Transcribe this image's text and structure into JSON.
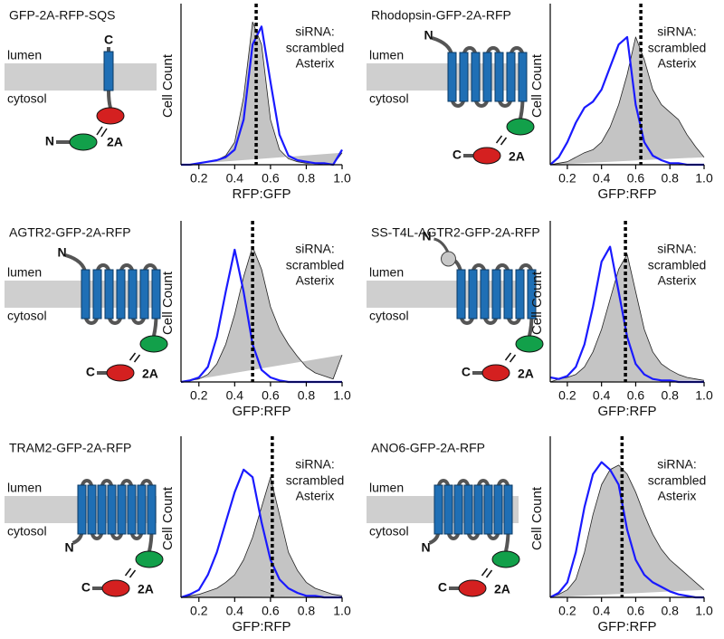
{
  "chart_data": [
    {
      "type": "area",
      "title": "GFP-2A-RFP-SQS",
      "xlabel": "RFP:GFP",
      "ylabel": "Cell Count",
      "membrane_labels": [
        "lumen",
        "cytosol"
      ],
      "termini": [
        "N",
        "C"
      ],
      "cleavage_site": "2A",
      "x": [
        0.1,
        0.15,
        0.2,
        0.25,
        0.3,
        0.35,
        0.4,
        0.45,
        0.5,
        0.55,
        0.6,
        0.65,
        0.7,
        0.75,
        0.8,
        0.85,
        0.9,
        0.95,
        1.0
      ],
      "xlim": [
        0.1,
        1.0
      ],
      "ylim": [
        0,
        1
      ],
      "xticks": [
        0.2,
        0.4,
        0.6,
        0.8,
        {
          "value": 1,
          "label": "1.0"
        }
      ],
      "marker_x": 0.52,
      "legend_title": "siRNA:",
      "series": [
        {
          "name": "scrambled",
          "color": "#c4c4c4",
          "values": [
            0,
            0,
            0.01,
            0.02,
            0.03,
            0.06,
            0.15,
            0.45,
            0.95,
            0.8,
            0.3,
            0.1,
            0.04,
            0.02,
            0.01,
            0.01,
            0,
            0,
            0.08
          ]
        },
        {
          "name": "Asterix",
          "color": "#1a1aff",
          "values": [
            0,
            0,
            0.01,
            0.02,
            0.03,
            0.05,
            0.1,
            0.3,
            0.8,
            0.92,
            0.55,
            0.2,
            0.06,
            0.03,
            0.02,
            0.01,
            0.01,
            0,
            0.1
          ]
        }
      ]
    },
    {
      "type": "area",
      "title": "Rhodopsin-GFP-2A-RFP",
      "xlabel": "GFP:RFP",
      "ylabel": "Cell Count",
      "membrane_labels": [
        "lumen",
        "cytosol"
      ],
      "termini": [
        "N",
        "C"
      ],
      "cleavage_site": "2A",
      "x": [
        0.1,
        0.15,
        0.2,
        0.25,
        0.3,
        0.35,
        0.4,
        0.45,
        0.5,
        0.55,
        0.6,
        0.65,
        0.7,
        0.75,
        0.8,
        0.85,
        0.9,
        0.95,
        1.0
      ],
      "xlim": [
        0.1,
        1.0
      ],
      "ylim": [
        0,
        1
      ],
      "xticks": [
        0.2,
        0.4,
        0.6,
        0.8,
        {
          "value": 1,
          "label": "1.0"
        }
      ],
      "marker_x": 0.63,
      "legend_title": "siRNA:",
      "series": [
        {
          "name": "scrambled",
          "color": "#c4c4c4",
          "values": [
            0,
            0.01,
            0.02,
            0.05,
            0.08,
            0.1,
            0.15,
            0.25,
            0.4,
            0.6,
            0.85,
            0.7,
            0.5,
            0.4,
            0.35,
            0.3,
            0.2,
            0.12,
            0.05
          ]
        },
        {
          "name": "Asterix",
          "color": "#1a1aff",
          "values": [
            0,
            0.05,
            0.15,
            0.28,
            0.38,
            0.42,
            0.5,
            0.65,
            0.8,
            0.85,
            0.4,
            0.15,
            0.06,
            0.03,
            0.01,
            0.01,
            0,
            0,
            0
          ]
        }
      ]
    },
    {
      "type": "area",
      "title": "AGTR2-GFP-2A-RFP",
      "xlabel": "GFP:RFP",
      "ylabel": "Cell Count",
      "membrane_labels": [
        "lumen",
        "cytosol"
      ],
      "termini": [
        "N",
        "C"
      ],
      "cleavage_site": "2A",
      "x": [
        0.1,
        0.15,
        0.2,
        0.25,
        0.3,
        0.35,
        0.4,
        0.45,
        0.5,
        0.55,
        0.6,
        0.65,
        0.7,
        0.75,
        0.8,
        0.85,
        0.9,
        0.95,
        1.0
      ],
      "xlim": [
        0.1,
        1.0
      ],
      "ylim": [
        0,
        1
      ],
      "xticks": [
        0.2,
        0.4,
        0.6,
        0.8,
        {
          "value": 1,
          "label": "1.0"
        }
      ],
      "marker_x": 0.5,
      "legend_title": "siRNA:",
      "series": [
        {
          "name": "scrambled",
          "color": "#c4c4c4",
          "values": [
            0,
            0.01,
            0.02,
            0.05,
            0.12,
            0.25,
            0.45,
            0.7,
            0.9,
            0.75,
            0.5,
            0.35,
            0.25,
            0.17,
            0.1,
            0.06,
            0.04,
            0.02,
            0.18
          ]
        },
        {
          "name": "Asterix",
          "color": "#1a1aff",
          "values": [
            0,
            0.01,
            0.03,
            0.1,
            0.3,
            0.6,
            0.88,
            0.6,
            0.25,
            0.08,
            0.03,
            0.01,
            0,
            0,
            0,
            0,
            0,
            0,
            0
          ]
        }
      ]
    },
    {
      "type": "area",
      "title": "SS-T4L-AGTR2-GFP-2A-RFP",
      "xlabel": "GFP:RFP",
      "ylabel": "Cell Count",
      "membrane_labels": [
        "lumen",
        "cytosol"
      ],
      "termini": [
        "N",
        "C"
      ],
      "cleavage_site": "2A",
      "x": [
        0.1,
        0.15,
        0.2,
        0.25,
        0.3,
        0.35,
        0.4,
        0.45,
        0.5,
        0.55,
        0.6,
        0.65,
        0.7,
        0.75,
        0.8,
        0.85,
        0.9,
        0.95,
        1.0
      ],
      "xlim": [
        0.1,
        1.0
      ],
      "ylim": [
        0,
        1
      ],
      "xticks": [
        0.2,
        0.4,
        0.6,
        0.8,
        {
          "value": 1,
          "label": "1.0"
        }
      ],
      "marker_x": 0.54,
      "legend_title": "siRNA:",
      "series": [
        {
          "name": "scrambled",
          "color": "#c4c4c4",
          "values": [
            0,
            0.02,
            0.03,
            0.05,
            0.1,
            0.2,
            0.35,
            0.55,
            0.75,
            0.85,
            0.6,
            0.35,
            0.2,
            0.12,
            0.08,
            0.05,
            0.03,
            0.02,
            0.01
          ]
        },
        {
          "name": "Asterix",
          "color": "#1a1aff",
          "values": [
            0.03,
            0.02,
            0.04,
            0.1,
            0.25,
            0.5,
            0.8,
            0.9,
            0.6,
            0.3,
            0.12,
            0.05,
            0.02,
            0.01,
            0.01,
            0,
            0,
            0,
            0
          ]
        }
      ]
    },
    {
      "type": "area",
      "title": "TRAM2-GFP-2A-RFP",
      "xlabel": "GFP:RFP",
      "ylabel": "Cell Count",
      "membrane_labels": [
        "lumen",
        "cytosol"
      ],
      "termini": [
        "N",
        "C"
      ],
      "cleavage_site": "2A",
      "x": [
        0.1,
        0.15,
        0.2,
        0.25,
        0.3,
        0.35,
        0.4,
        0.45,
        0.5,
        0.55,
        0.6,
        0.65,
        0.7,
        0.75,
        0.8,
        0.85,
        0.9,
        0.95,
        1.0
      ],
      "xlim": [
        0.1,
        1.0
      ],
      "ylim": [
        0,
        1
      ],
      "xticks": [
        0.2,
        0.4,
        0.6,
        0.8,
        {
          "value": 1,
          "label": "1.0"
        }
      ],
      "marker_x": 0.61,
      "legend_title": "siRNA:",
      "series": [
        {
          "name": "scrambled",
          "color": "#c4c4c4",
          "values": [
            0,
            0.01,
            0.02,
            0.04,
            0.06,
            0.1,
            0.15,
            0.25,
            0.4,
            0.6,
            0.8,
            0.55,
            0.3,
            0.18,
            0.1,
            0.06,
            0.04,
            0.02,
            0.01
          ]
        },
        {
          "name": "Asterix",
          "color": "#1a1aff",
          "values": [
            0,
            0.02,
            0.05,
            0.15,
            0.3,
            0.5,
            0.7,
            0.85,
            0.8,
            0.5,
            0.25,
            0.12,
            0.06,
            0.03,
            0.01,
            0.01,
            0,
            0,
            0
          ]
        }
      ]
    },
    {
      "type": "area",
      "title": "ANO6-GFP-2A-RFP",
      "xlabel": "GFP:RFP",
      "ylabel": "Cell Count",
      "membrane_labels": [
        "lumen",
        "cytosol"
      ],
      "termini": [
        "N",
        "C"
      ],
      "cleavage_site": "2A",
      "x": [
        0.1,
        0.15,
        0.2,
        0.25,
        0.3,
        0.35,
        0.4,
        0.45,
        0.5,
        0.55,
        0.6,
        0.65,
        0.7,
        0.75,
        0.8,
        0.85,
        0.9,
        0.95,
        1.0
      ],
      "xlim": [
        0.1,
        1.0
      ],
      "ylim": [
        0,
        1
      ],
      "xticks": [
        0.2,
        0.4,
        0.6,
        0.8,
        {
          "value": 1,
          "label": "1.0"
        }
      ],
      "marker_x": 0.52,
      "legend_title": "siRNA:",
      "series": [
        {
          "name": "scrambled",
          "color": "#c4c4c4",
          "values": [
            0,
            0.02,
            0.05,
            0.12,
            0.3,
            0.55,
            0.75,
            0.85,
            0.88,
            0.82,
            0.7,
            0.55,
            0.42,
            0.32,
            0.25,
            0.2,
            0.15,
            0.1,
            0.05
          ]
        },
        {
          "name": "Asterix",
          "color": "#1a1aff",
          "values": [
            0,
            0.03,
            0.1,
            0.3,
            0.6,
            0.82,
            0.9,
            0.85,
            0.75,
            0.45,
            0.25,
            0.15,
            0.1,
            0.07,
            0.04,
            0.02,
            0.01,
            0,
            0
          ]
        }
      ]
    }
  ]
}
